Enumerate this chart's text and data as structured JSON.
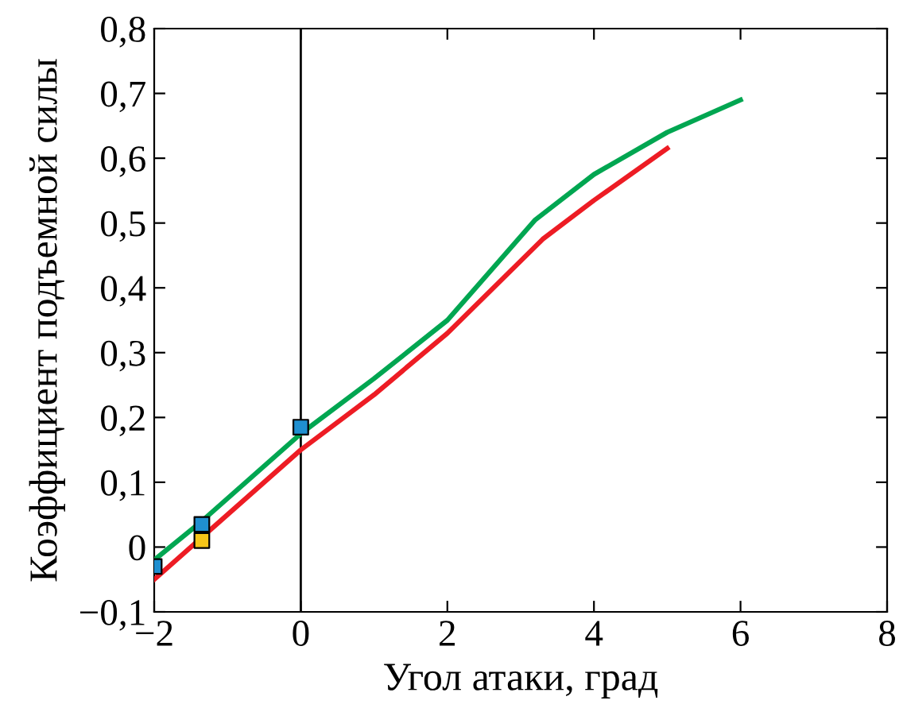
{
  "chart_data": {
    "type": "line",
    "xlabel": "Угол атаки, град",
    "ylabel": "Коэффициент подъемной силы",
    "series": [
      {
        "color": "#00a651",
        "x": [
          -2,
          -1.35,
          0,
          1,
          2,
          3.2,
          4,
          5,
          6
        ],
        "values": [
          -0.02,
          0.04,
          0.175,
          0.26,
          0.35,
          0.505,
          0.575,
          0.64,
          0.69
        ]
      },
      {
        "color": "#ed1c24",
        "x": [
          -2,
          0,
          1,
          2,
          3.3,
          4,
          4.5,
          5
        ],
        "values": [
          -0.05,
          0.15,
          0.235,
          0.33,
          0.475,
          0.535,
          0.575,
          0.615
        ]
      },
      {
        "type": "scatter",
        "marker": "square",
        "color": "#1f8fd0",
        "x": [
          -2,
          -1.35,
          0
        ],
        "values": [
          -0.03,
          0.035,
          0.185
        ]
      },
      {
        "type": "scatter",
        "marker": "square",
        "color": "#f5c518",
        "x": [
          -1.35
        ],
        "values": [
          0.01
        ]
      }
    ],
    "xlim": [
      -2,
      8
    ],
    "ylim": [
      -0.1,
      0.8
    ],
    "xticks": [
      {
        "value": -2,
        "label": "−2"
      },
      0,
      2,
      4,
      6,
      8
    ],
    "yticks": [
      {
        "value": -0.1,
        "label": "−0,1"
      },
      {
        "value": 0,
        "label": "0"
      },
      {
        "value": 0.1,
        "label": "0,1"
      },
      {
        "value": 0.2,
        "label": "0,2"
      },
      {
        "value": 0.3,
        "label": "0,3"
      },
      {
        "value": 0.4,
        "label": "0,4"
      },
      {
        "value": 0.5,
        "label": "0,5"
      },
      {
        "value": 0.6,
        "label": "0,6"
      },
      {
        "value": 0.7,
        "label": "0,7"
      },
      {
        "value": 0.8,
        "label": "0,8"
      }
    ],
    "ref_lines": [
      {
        "axis": "x",
        "value": 0,
        "color": "#000000"
      }
    ],
    "grid": false,
    "legend": false
  }
}
